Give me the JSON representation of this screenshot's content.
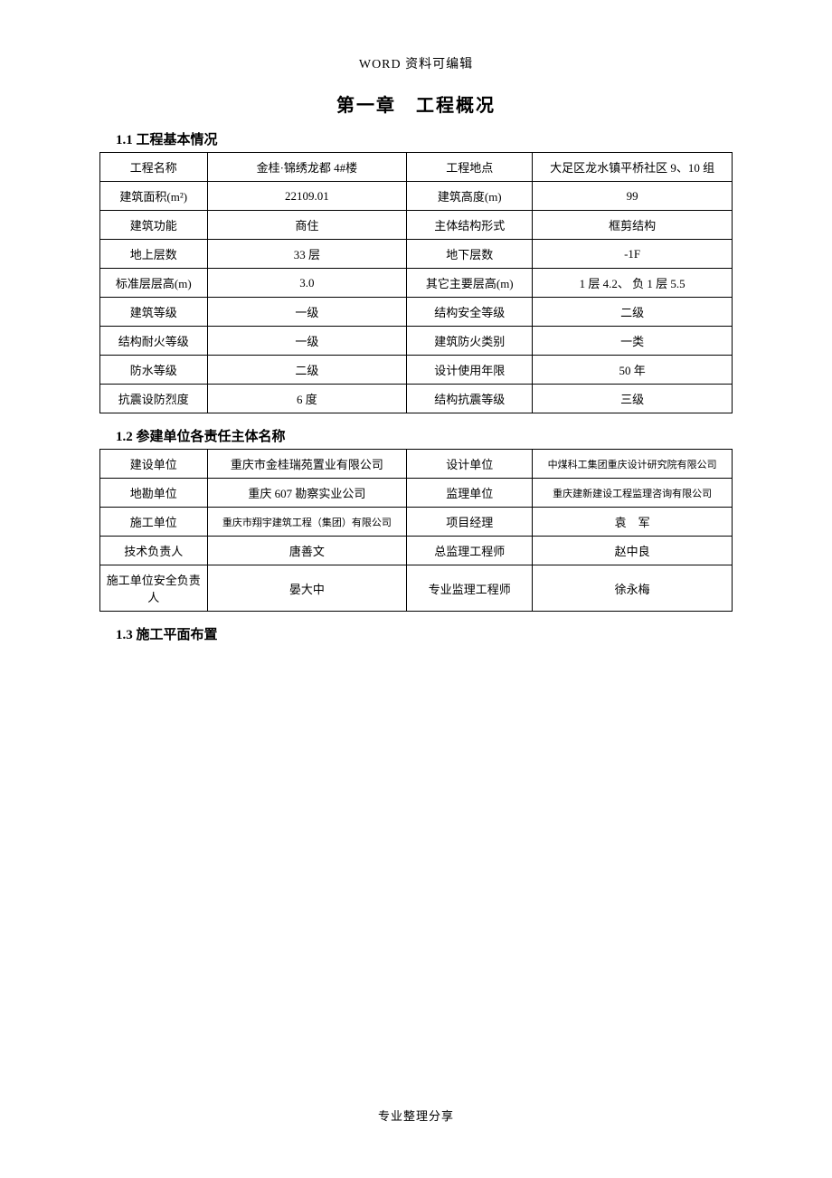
{
  "header": "WORD 资料可编辑",
  "chapter_title": "第一章　工程概况",
  "section1_title": "1.1 工程基本情况",
  "section2_title": "1.2 参建单位各责任主体名称",
  "section3_title": "1.3 施工平面布置",
  "footer": "专业整理分享",
  "table1": {
    "rows": [
      {
        "l1": "工程名称",
        "v1": "金桂·锦绣龙都 4#楼",
        "l2": "工程地点",
        "v2": "大足区龙水镇平桥社区 9、10 组"
      },
      {
        "l1": "建筑面积(m²)",
        "v1": "22109.01",
        "l2": "建筑高度(m)",
        "v2": "99"
      },
      {
        "l1": "建筑功能",
        "v1": "商住",
        "l2": "主体结构形式",
        "v2": "框剪结构"
      },
      {
        "l1": "地上层数",
        "v1": "33 层",
        "l2": "地下层数",
        "v2": "-1F"
      },
      {
        "l1": "标准层层高(m)",
        "v1": "3.0",
        "l2": "其它主要层高(m)",
        "v2": "1 层 4.2、 负 1 层 5.5"
      },
      {
        "l1": "建筑等级",
        "v1": "一级",
        "l2": "结构安全等级",
        "v2": "二级"
      },
      {
        "l1": "结构耐火等级",
        "v1": "一级",
        "l2": "建筑防火类别",
        "v2": "一类"
      },
      {
        "l1": "防水等级",
        "v1": "二级",
        "l2": "设计使用年限",
        "v2": "50 年"
      },
      {
        "l1": "抗震设防烈度",
        "v1": "6 度",
        "l2": "结构抗震等级",
        "v2": "三级"
      }
    ]
  },
  "table2": {
    "rows": [
      {
        "l1": "建设单位",
        "v1": "重庆市金桂瑞苑置业有限公司",
        "l2": "设计单位",
        "v2": "中煤科工集团重庆设计研究院有限公司"
      },
      {
        "l1": "地勘单位",
        "v1": "重庆 607 勘察实业公司",
        "l2": "监理单位",
        "v2": "重庆建新建设工程监理咨询有限公司"
      },
      {
        "l1": "施工单位",
        "v1": "重庆市翔宇建筑工程（集团）有限公司",
        "l2": "项目经理",
        "v2": "袁　军"
      },
      {
        "l1": "技术负责人",
        "v1": "唐善文",
        "l2": "总监理工程师",
        "v2": "赵中良"
      },
      {
        "l1": "施工单位安全负责人",
        "v1": "晏大中",
        "l2": "专业监理工程师",
        "v2": "徐永梅"
      }
    ]
  }
}
